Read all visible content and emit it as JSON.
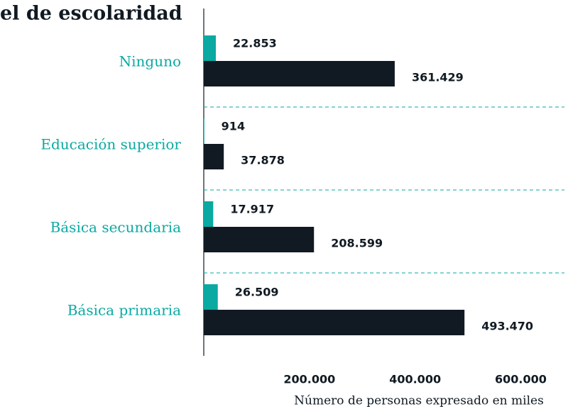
{
  "chart_data": {
    "type": "bar",
    "orientation": "horizontal",
    "title": "el de escolaridad",
    "x_label": "Número de personas expresado en miles",
    "categories": [
      "Ninguno",
      "Educación superior",
      "Básica secundaria",
      "Básica primaria"
    ],
    "series": [
      {
        "color": "#0aa9a2",
        "values": [
          22853,
          914,
          17917,
          26509
        ],
        "value_labels": [
          "22.853",
          "914",
          "17.917",
          "26.509"
        ]
      },
      {
        "color": "#111a22",
        "values": [
          361429,
          37878,
          208599,
          493470
        ],
        "value_labels": [
          "361.429",
          "37.878",
          "208.599",
          "493.470"
        ]
      }
    ],
    "xlim": [
      0,
      680000
    ],
    "xticks": [
      {
        "value": 200000,
        "label": "200.000"
      },
      {
        "value": 400000,
        "label": "400.000"
      },
      {
        "value": 600000,
        "label": "600.000"
      }
    ],
    "separator_color": "#0aa9a2"
  }
}
